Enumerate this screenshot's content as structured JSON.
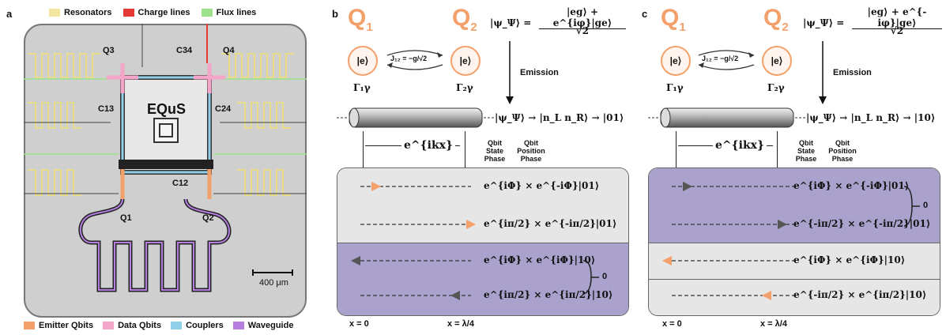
{
  "panel_a": {
    "label": "a",
    "legend_top": [
      {
        "text": "Resonators",
        "color": "#f2e6a0"
      },
      {
        "text": "Charge lines",
        "color": "#e53935"
      },
      {
        "text": "Flux lines",
        "color": "#9be28a"
      }
    ],
    "legend_bottom": [
      {
        "text": "Emitter Qbits",
        "color": "#f3a06a"
      },
      {
        "text": "Data Qbits",
        "color": "#f4a6c8"
      },
      {
        "text": "Couplers",
        "color": "#8fd0e8"
      },
      {
        "text": "Waveguide",
        "color": "#b57fe0"
      }
    ],
    "chip_label": "EQuS",
    "qubit_labels": [
      "Q3",
      "Q4",
      "Q1",
      "Q2"
    ],
    "coupler_labels": [
      "C34",
      "C13",
      "C24",
      "C12"
    ],
    "scale_bar": "400 μm"
  },
  "panel_b": {
    "label": "b",
    "q1": "Q",
    "q1_sub": "1",
    "q2": "Q",
    "q2_sub": "2",
    "q1_state": "|e⟩",
    "q2_state": "|e⟩",
    "coupling": "J₁₂ = −g/√2",
    "gamma1": "Γ₁γ",
    "gamma2": "Γ₂γ",
    "state_eq_left": "|ψ_Ψ⟩ =",
    "state_eq_num": "|eg⟩ + e^{iφ}|ge⟩",
    "state_eq_den": "√2",
    "emission": "Emission",
    "wg_state": "|ψ_Ψ⟩ → |n_L n_R⟩ → |01⟩",
    "phase": "e^{ikx}",
    "qbit_state_lbl": "Qbit State Phase",
    "qbit_pos_lbl": "Qbit Position Phase",
    "rows": [
      {
        "phase": "e^{iΦ} × e^{-iΦ}|01⟩"
      },
      {
        "phase": "e^{iπ/2} × e^{-iπ/2}|01⟩"
      },
      {
        "phase": "e^{iΦ} × e^{iΦ}|10⟩"
      },
      {
        "phase": "e^{iπ/2} × e^{iπ/2}|10⟩"
      }
    ],
    "result": "0",
    "x0": "x = 0",
    "x1": "x = λ/4"
  },
  "panel_c": {
    "label": "c",
    "q1": "Q",
    "q1_sub": "1",
    "q2": "Q",
    "q2_sub": "2",
    "q1_state": "|e⟩",
    "q2_state": "|e⟩",
    "coupling": "J₁₂ = −g/√2",
    "gamma1": "Γ₁γ",
    "gamma2": "Γ₂γ",
    "state_eq_left": "|ψ_Ψ⟩ =",
    "state_eq_num": "|eg⟩ + e^{-iφ}|ge⟩",
    "state_eq_den": "√2",
    "emission": "Emission",
    "wg_state": "|ψ_Ψ⟩ → |n_L n_R⟩ → |10⟩",
    "phase": "e^{ikx}",
    "qbit_state_lbl": "Qbit State Phase",
    "qbit_pos_lbl": "Qbit Position Phase",
    "rows": [
      {
        "phase": "e^{iΦ} × e^{-iΦ}|01⟩"
      },
      {
        "phase": "e^{-iπ/2} × e^{-iπ/2}|01⟩"
      },
      {
        "phase": "e^{iΦ} × e^{iΦ}|10⟩"
      },
      {
        "phase": "e^{-iπ/2} × e^{iπ/2}|10⟩"
      }
    ],
    "result": "0",
    "x0": "x = 0",
    "x1": "x = λ/4"
  }
}
